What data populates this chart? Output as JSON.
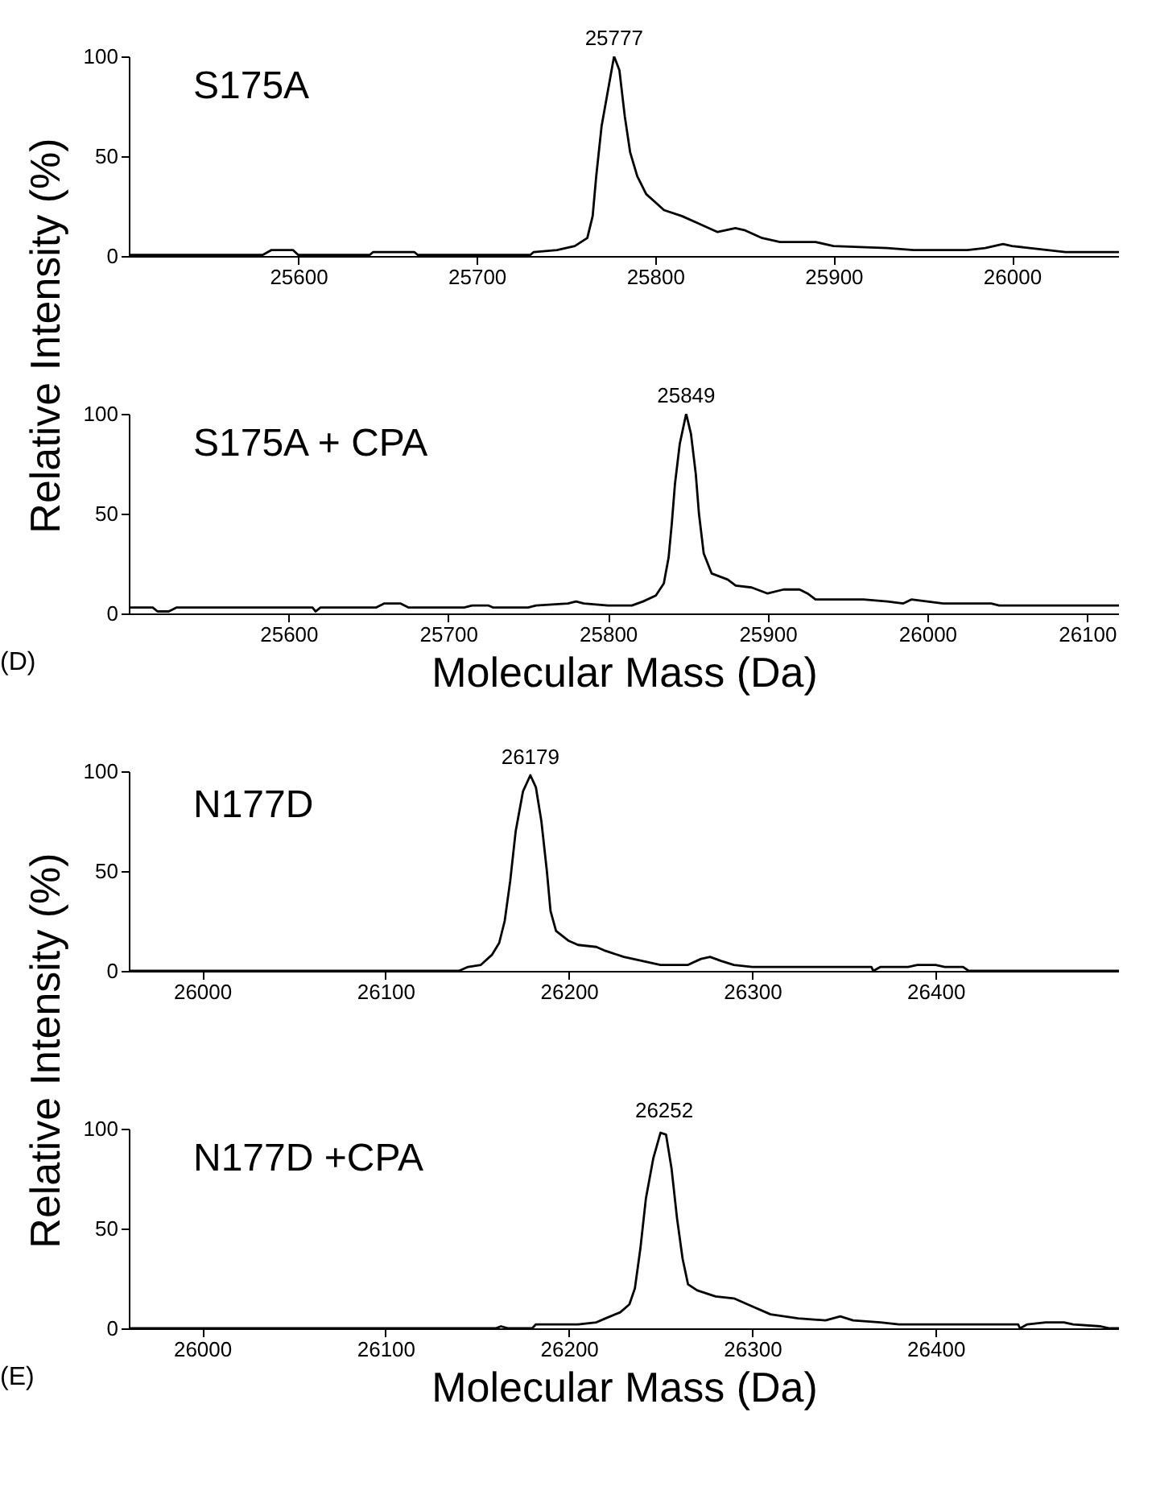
{
  "chart_data": [
    {
      "type": "line",
      "title": "S175A",
      "ylabel": "Relative Intensity (%)",
      "xlim": [
        25505,
        26060
      ],
      "xticks": [
        25600,
        25700,
        25800,
        25900,
        26000
      ],
      "ylim": [
        0,
        100
      ],
      "yticks": [
        0,
        50,
        100
      ],
      "grid": false,
      "marker": "none",
      "line_style": "solid",
      "annotations": [
        {
          "text": "25777",
          "x": 25777,
          "y": 100
        }
      ],
      "x": [
        25505,
        25580,
        25585,
        25597,
        25600,
        25640,
        25642,
        25665,
        25667,
        25730,
        25732,
        25745,
        25755,
        25762,
        25765,
        25767,
        25770,
        25773,
        25777,
        25780,
        25783,
        25786,
        25790,
        25795,
        25800,
        25805,
        25815,
        25825,
        25835,
        25845,
        25850,
        25860,
        25870,
        25890,
        25900,
        25930,
        25945,
        25960,
        25975,
        25985,
        25995,
        26000,
        26010,
        26020,
        26030,
        26060
      ],
      "series": [
        {
          "color": "#000000",
          "values": [
            0.5,
            0.5,
            3,
            3,
            0.5,
            0.5,
            2,
            2,
            0.5,
            0.5,
            2,
            3,
            5,
            9,
            20,
            40,
            65,
            80,
            100,
            93,
            70,
            52,
            40,
            31,
            27,
            23,
            20,
            16,
            12,
            14,
            13,
            9,
            7,
            7,
            5,
            4,
            3,
            3,
            3,
            4,
            6,
            5,
            4,
            3,
            2,
            2
          ]
        }
      ]
    },
    {
      "type": "line",
      "title": "S175A + CPA",
      "xlabel": "Molecular Mass (Da)",
      "xlim": [
        25500,
        26120
      ],
      "xticks": [
        25600,
        25700,
        25800,
        25900,
        26000,
        26100
      ],
      "ylim": [
        0,
        100
      ],
      "yticks": [
        0,
        50,
        100
      ],
      "grid": false,
      "marker": "none",
      "line_style": "solid",
      "annotations": [
        "(D)",
        {
          "text": "25849",
          "x": 25849,
          "y": 100
        }
      ],
      "x": [
        25500,
        25515,
        25518,
        25525,
        25530,
        25615,
        25617,
        25620,
        25655,
        25660,
        25670,
        25675,
        25710,
        25715,
        25725,
        25728,
        25750,
        25755,
        25775,
        25780,
        25785,
        25800,
        25815,
        25822,
        25830,
        25835,
        25838,
        25840,
        25842,
        25845,
        25849,
        25852,
        25855,
        25857,
        25860,
        25865,
        25875,
        25880,
        25890,
        25900,
        25910,
        25920,
        25925,
        25930,
        25960,
        25975,
        25985,
        25990,
        26000,
        26010,
        26040,
        26045,
        26120
      ],
      "series": [
        {
          "color": "#000000",
          "values": [
            3,
            3,
            1,
            1,
            3,
            3,
            1,
            3,
            3,
            5,
            5,
            3,
            3,
            4,
            4,
            3,
            3,
            4,
            5,
            6,
            5,
            4,
            4,
            6,
            9,
            15,
            28,
            45,
            65,
            85,
            100,
            90,
            70,
            50,
            30,
            20,
            17,
            14,
            13,
            10,
            12,
            12,
            10,
            7,
            7,
            6,
            5,
            7,
            6,
            5,
            5,
            4,
            4
          ]
        }
      ]
    },
    {
      "type": "line",
      "title": "N177D",
      "ylabel": "Relative Intensity (%)",
      "xlim": [
        25960,
        26500
      ],
      "xticks": [
        26000,
        26100,
        26200,
        26300,
        26400
      ],
      "ylim": [
        0,
        100
      ],
      "yticks": [
        0,
        50,
        100
      ],
      "grid": false,
      "marker": "none",
      "line_style": "solid",
      "annotations": [
        {
          "text": "26179",
          "x": 26179,
          "y": 98
        }
      ],
      "x": [
        25960,
        26140,
        26145,
        26152,
        26158,
        26162,
        26165,
        26168,
        26171,
        26175,
        26179,
        26182,
        26185,
        26188,
        26190,
        26193,
        26200,
        26205,
        26215,
        26220,
        26230,
        26240,
        26250,
        26265,
        26272,
        26277,
        26283,
        26290,
        26300,
        26335,
        26365,
        26366,
        26370,
        26385,
        26390,
        26400,
        26405,
        26415,
        26418,
        26500
      ],
      "series": [
        {
          "color": "#000000",
          "values": [
            0,
            0,
            2,
            3,
            8,
            14,
            25,
            45,
            70,
            90,
            98,
            92,
            75,
            50,
            30,
            20,
            15,
            13,
            12,
            10,
            7,
            5,
            3,
            3,
            6,
            7,
            5,
            3,
            2,
            2,
            2,
            0,
            2,
            2,
            3,
            3,
            2,
            2,
            0,
            0
          ]
        }
      ]
    },
    {
      "type": "line",
      "title": "N177D +CPA",
      "xlabel": "Molecular Mass (Da)",
      "xlim": [
        25960,
        26500
      ],
      "xticks": [
        26000,
        26100,
        26200,
        26300,
        26400
      ],
      "ylim": [
        0,
        100
      ],
      "yticks": [
        0,
        50,
        100
      ],
      "grid": false,
      "marker": "none",
      "line_style": "solid",
      "annotations": [
        "(E)",
        {
          "text": "26252",
          "x": 26252,
          "y": 100
        }
      ],
      "x": [
        25960,
        26160,
        26163,
        26167,
        26180,
        26182,
        26205,
        26215,
        26220,
        26228,
        26233,
        26236,
        26239,
        26242,
        26246,
        26250,
        26253,
        26256,
        26259,
        26262,
        26265,
        26270,
        26280,
        26290,
        26300,
        26310,
        26325,
        26340,
        26348,
        26355,
        26370,
        26380,
        26445,
        26446,
        26450,
        26460,
        26470,
        26475,
        26490,
        26495,
        26500
      ],
      "series": [
        {
          "color": "#000000",
          "values": [
            0,
            0,
            1,
            0,
            0,
            2,
            2,
            3,
            5,
            8,
            12,
            20,
            40,
            65,
            85,
            98,
            97,
            80,
            55,
            35,
            22,
            19,
            16,
            15,
            11,
            7,
            5,
            4,
            6,
            4,
            3,
            2,
            2,
            0,
            2,
            3,
            3,
            2,
            1,
            0,
            0
          ]
        }
      ]
    }
  ]
}
